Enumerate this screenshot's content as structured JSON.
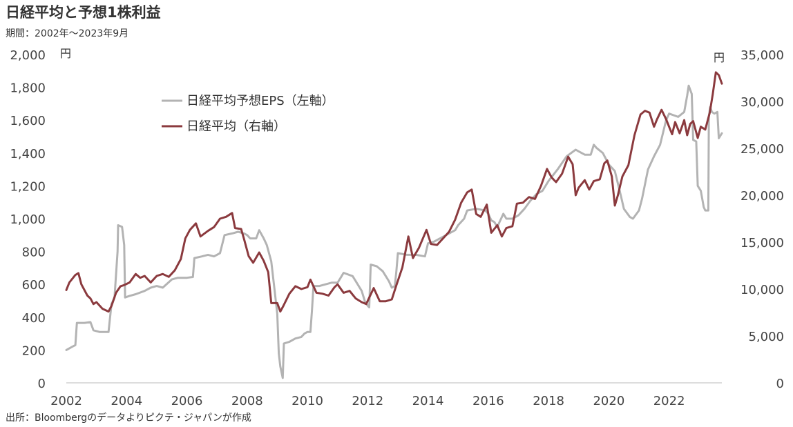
{
  "header": {
    "title": "日経平均と予想1株利益",
    "subtitle": "期間：2002年～2023年9月"
  },
  "footer": {
    "source": "出所：Bloombergのデータよりピクテ・ジャパンが作成"
  },
  "chart_data": {
    "type": "line",
    "title": "日経平均と予想1株利益",
    "xlim": [
      2002,
      2023.75
    ],
    "x_ticks": [
      "2002",
      "2004",
      "2006",
      "2008",
      "2010",
      "2012",
      "2014",
      "2016",
      "2018",
      "2020",
      "2022"
    ],
    "left_axis": {
      "unit": "円",
      "ylim": [
        0,
        2000
      ],
      "ticks": [
        0,
        200,
        400,
        600,
        800,
        1000,
        1200,
        1400,
        1600,
        1800,
        2000
      ],
      "tick_labels": [
        "0",
        "200",
        "400",
        "600",
        "800",
        "1,000",
        "1,200",
        "1,400",
        "1,600",
        "1,800",
        "2,000"
      ]
    },
    "right_axis": {
      "unit": "円",
      "ylim": [
        0,
        35000
      ],
      "ticks": [
        0,
        5000,
        10000,
        15000,
        20000,
        25000,
        30000,
        35000
      ],
      "tick_labels": [
        "0",
        "5,000",
        "10,000",
        "15,000",
        "20,000",
        "25,000",
        "30,000",
        "35,000"
      ]
    },
    "grid": false,
    "legend_position": "top-left",
    "series": [
      {
        "name": "日経平均予想EPS（左軸）",
        "axis": "left",
        "color": "#b3b3b3",
        "points": [
          [
            2002.0,
            200
          ],
          [
            2002.2,
            220
          ],
          [
            2002.3,
            230
          ],
          [
            2002.35,
            365
          ],
          [
            2002.6,
            365
          ],
          [
            2002.8,
            370
          ],
          [
            2002.9,
            320
          ],
          [
            2003.1,
            310
          ],
          [
            2003.4,
            310
          ],
          [
            2003.5,
            480
          ],
          [
            2003.6,
            520
          ],
          [
            2003.7,
            800
          ],
          [
            2003.72,
            960
          ],
          [
            2003.85,
            950
          ],
          [
            2003.92,
            840
          ],
          [
            2003.95,
            520
          ],
          [
            2004.1,
            530
          ],
          [
            2004.3,
            540
          ],
          [
            2004.6,
            560
          ],
          [
            2004.8,
            580
          ],
          [
            2005.0,
            590
          ],
          [
            2005.2,
            580
          ],
          [
            2005.5,
            630
          ],
          [
            2005.7,
            640
          ],
          [
            2005.9,
            640
          ],
          [
            2006.0,
            640
          ],
          [
            2006.2,
            645
          ],
          [
            2006.25,
            760
          ],
          [
            2006.5,
            770
          ],
          [
            2006.7,
            780
          ],
          [
            2006.9,
            770
          ],
          [
            2007.1,
            790
          ],
          [
            2007.25,
            900
          ],
          [
            2007.5,
            910
          ],
          [
            2007.7,
            920
          ],
          [
            2007.9,
            910
          ],
          [
            2008.0,
            900
          ],
          [
            2008.1,
            880
          ],
          [
            2008.3,
            880
          ],
          [
            2008.4,
            930
          ],
          [
            2008.55,
            880
          ],
          [
            2008.65,
            840
          ],
          [
            2008.8,
            740
          ],
          [
            2008.9,
            580
          ],
          [
            2009.0,
            420
          ],
          [
            2009.05,
            180
          ],
          [
            2009.1,
            100
          ],
          [
            2009.18,
            30
          ],
          [
            2009.22,
            240
          ],
          [
            2009.4,
            250
          ],
          [
            2009.6,
            270
          ],
          [
            2009.8,
            280
          ],
          [
            2009.9,
            300
          ],
          [
            2010.0,
            310
          ],
          [
            2010.1,
            310
          ],
          [
            2010.15,
            440
          ],
          [
            2010.2,
            590
          ],
          [
            2010.4,
            590
          ],
          [
            2010.6,
            600
          ],
          [
            2010.8,
            610
          ],
          [
            2011.0,
            610
          ],
          [
            2011.1,
            640
          ],
          [
            2011.2,
            670
          ],
          [
            2011.5,
            650
          ],
          [
            2011.6,
            620
          ],
          [
            2011.8,
            560
          ],
          [
            2011.9,
            500
          ],
          [
            2012.0,
            470
          ],
          [
            2012.05,
            460
          ],
          [
            2012.1,
            720
          ],
          [
            2012.3,
            710
          ],
          [
            2012.5,
            680
          ],
          [
            2012.7,
            620
          ],
          [
            2012.8,
            580
          ],
          [
            2012.9,
            590
          ],
          [
            2012.95,
            680
          ],
          [
            2013.0,
            790
          ],
          [
            2013.3,
            780
          ],
          [
            2013.6,
            780
          ],
          [
            2013.9,
            770
          ],
          [
            2014.0,
            850
          ],
          [
            2014.2,
            860
          ],
          [
            2014.5,
            890
          ],
          [
            2014.7,
            910
          ],
          [
            2014.9,
            930
          ],
          [
            2015.0,
            960
          ],
          [
            2015.2,
            1000
          ],
          [
            2015.3,
            1050
          ],
          [
            2015.6,
            1060
          ],
          [
            2015.9,
            1050
          ],
          [
            2016.0,
            1030
          ],
          [
            2016.1,
            990
          ],
          [
            2016.2,
            980
          ],
          [
            2016.3,
            950
          ],
          [
            2016.5,
            1030
          ],
          [
            2016.6,
            1000
          ],
          [
            2016.8,
            1000
          ],
          [
            2017.0,
            1020
          ],
          [
            2017.2,
            1060
          ],
          [
            2017.4,
            1110
          ],
          [
            2017.6,
            1150
          ],
          [
            2017.8,
            1170
          ],
          [
            2018.0,
            1230
          ],
          [
            2018.3,
            1300
          ],
          [
            2018.6,
            1380
          ],
          [
            2018.9,
            1420
          ],
          [
            2019.0,
            1410
          ],
          [
            2019.2,
            1390
          ],
          [
            2019.4,
            1390
          ],
          [
            2019.5,
            1450
          ],
          [
            2019.6,
            1430
          ],
          [
            2019.8,
            1400
          ],
          [
            2020.0,
            1330
          ],
          [
            2020.2,
            1290
          ],
          [
            2020.4,
            1140
          ],
          [
            2020.5,
            1060
          ],
          [
            2020.7,
            1010
          ],
          [
            2020.8,
            1000
          ],
          [
            2021.0,
            1050
          ],
          [
            2021.1,
            1120
          ],
          [
            2021.3,
            1300
          ],
          [
            2021.5,
            1380
          ],
          [
            2021.7,
            1450
          ],
          [
            2021.9,
            1600
          ],
          [
            2022.0,
            1640
          ],
          [
            2022.3,
            1620
          ],
          [
            2022.5,
            1650
          ],
          [
            2022.6,
            1750
          ],
          [
            2022.65,
            1810
          ],
          [
            2022.75,
            1760
          ],
          [
            2022.8,
            1480
          ],
          [
            2022.9,
            1470
          ],
          [
            2022.95,
            1200
          ],
          [
            2023.05,
            1170
          ],
          [
            2023.15,
            1070
          ],
          [
            2023.2,
            1050
          ],
          [
            2023.3,
            1050
          ],
          [
            2023.32,
            1620
          ],
          [
            2023.36,
            1680
          ],
          [
            2023.42,
            1650
          ],
          [
            2023.5,
            1640
          ],
          [
            2023.6,
            1650
          ],
          [
            2023.65,
            1490
          ],
          [
            2023.75,
            1520
          ]
        ]
      },
      {
        "name": "日経平均（右軸）",
        "axis": "right",
        "color": "#8b3a3e",
        "points": [
          [
            2002.0,
            9900
          ],
          [
            2002.1,
            10700
          ],
          [
            2002.3,
            11500
          ],
          [
            2002.4,
            11700
          ],
          [
            2002.5,
            10500
          ],
          [
            2002.7,
            9300
          ],
          [
            2002.8,
            9000
          ],
          [
            2002.9,
            8400
          ],
          [
            2003.0,
            8600
          ],
          [
            2003.2,
            7900
          ],
          [
            2003.4,
            7600
          ],
          [
            2003.5,
            8200
          ],
          [
            2003.65,
            9600
          ],
          [
            2003.8,
            10300
          ],
          [
            2003.9,
            10400
          ],
          [
            2004.1,
            10700
          ],
          [
            2004.3,
            11600
          ],
          [
            2004.45,
            11200
          ],
          [
            2004.6,
            11400
          ],
          [
            2004.8,
            10700
          ],
          [
            2005.0,
            11400
          ],
          [
            2005.2,
            11600
          ],
          [
            2005.4,
            11300
          ],
          [
            2005.6,
            12000
          ],
          [
            2005.8,
            13200
          ],
          [
            2005.95,
            15400
          ],
          [
            2006.1,
            16300
          ],
          [
            2006.3,
            17000
          ],
          [
            2006.45,
            15600
          ],
          [
            2006.7,
            16200
          ],
          [
            2006.9,
            16600
          ],
          [
            2007.1,
            17500
          ],
          [
            2007.3,
            17700
          ],
          [
            2007.5,
            18100
          ],
          [
            2007.6,
            16500
          ],
          [
            2007.8,
            16400
          ],
          [
            2007.9,
            15300
          ],
          [
            2008.05,
            13500
          ],
          [
            2008.2,
            12800
          ],
          [
            2008.4,
            13900
          ],
          [
            2008.55,
            13000
          ],
          [
            2008.7,
            11800
          ],
          [
            2008.8,
            8500
          ],
          [
            2009.0,
            8500
          ],
          [
            2009.1,
            7600
          ],
          [
            2009.2,
            8200
          ],
          [
            2009.4,
            9500
          ],
          [
            2009.6,
            10300
          ],
          [
            2009.8,
            10000
          ],
          [
            2010.0,
            10200
          ],
          [
            2010.1,
            11000
          ],
          [
            2010.3,
            9600
          ],
          [
            2010.5,
            9500
          ],
          [
            2010.7,
            9300
          ],
          [
            2010.9,
            10200
          ],
          [
            2011.0,
            10500
          ],
          [
            2011.2,
            9600
          ],
          [
            2011.4,
            9800
          ],
          [
            2011.6,
            9000
          ],
          [
            2011.8,
            8600
          ],
          [
            2011.95,
            8400
          ],
          [
            2012.2,
            10100
          ],
          [
            2012.4,
            8700
          ],
          [
            2012.6,
            8700
          ],
          [
            2012.8,
            8900
          ],
          [
            2012.95,
            10400
          ],
          [
            2013.15,
            12300
          ],
          [
            2013.35,
            15600
          ],
          [
            2013.5,
            13300
          ],
          [
            2013.7,
            14400
          ],
          [
            2013.95,
            16300
          ],
          [
            2014.1,
            14800
          ],
          [
            2014.3,
            14700
          ],
          [
            2014.5,
            15400
          ],
          [
            2014.7,
            16100
          ],
          [
            2014.9,
            17400
          ],
          [
            2015.1,
            19200
          ],
          [
            2015.3,
            20300
          ],
          [
            2015.45,
            20600
          ],
          [
            2015.6,
            18000
          ],
          [
            2015.75,
            17700
          ],
          [
            2015.95,
            19000
          ],
          [
            2016.1,
            16000
          ],
          [
            2016.3,
            16800
          ],
          [
            2016.45,
            15600
          ],
          [
            2016.6,
            16500
          ],
          [
            2016.8,
            16700
          ],
          [
            2016.95,
            19100
          ],
          [
            2017.15,
            19200
          ],
          [
            2017.35,
            19800
          ],
          [
            2017.55,
            19600
          ],
          [
            2017.75,
            21000
          ],
          [
            2017.95,
            22800
          ],
          [
            2018.1,
            21900
          ],
          [
            2018.25,
            21400
          ],
          [
            2018.45,
            22300
          ],
          [
            2018.65,
            24100
          ],
          [
            2018.8,
            23300
          ],
          [
            2018.9,
            20000
          ],
          [
            2019.0,
            20800
          ],
          [
            2019.2,
            21600
          ],
          [
            2019.35,
            20600
          ],
          [
            2019.5,
            21500
          ],
          [
            2019.7,
            21700
          ],
          [
            2019.85,
            23400
          ],
          [
            2019.95,
            23700
          ],
          [
            2020.1,
            22000
          ],
          [
            2020.2,
            18900
          ],
          [
            2020.3,
            20000
          ],
          [
            2020.45,
            22000
          ],
          [
            2020.65,
            23200
          ],
          [
            2020.85,
            26400
          ],
          [
            2021.05,
            28600
          ],
          [
            2021.2,
            29000
          ],
          [
            2021.35,
            28800
          ],
          [
            2021.5,
            27300
          ],
          [
            2021.6,
            28100
          ],
          [
            2021.75,
            29100
          ],
          [
            2021.9,
            28100
          ],
          [
            2022.0,
            27300
          ],
          [
            2022.1,
            26500
          ],
          [
            2022.2,
            27800
          ],
          [
            2022.35,
            26600
          ],
          [
            2022.5,
            28000
          ],
          [
            2022.6,
            26400
          ],
          [
            2022.7,
            27600
          ],
          [
            2022.8,
            27900
          ],
          [
            2022.95,
            26100
          ],
          [
            2023.05,
            27300
          ],
          [
            2023.2,
            27000
          ],
          [
            2023.35,
            28800
          ],
          [
            2023.45,
            30800
          ],
          [
            2023.55,
            33100
          ],
          [
            2023.65,
            32800
          ],
          [
            2023.75,
            31900
          ]
        ]
      }
    ]
  }
}
